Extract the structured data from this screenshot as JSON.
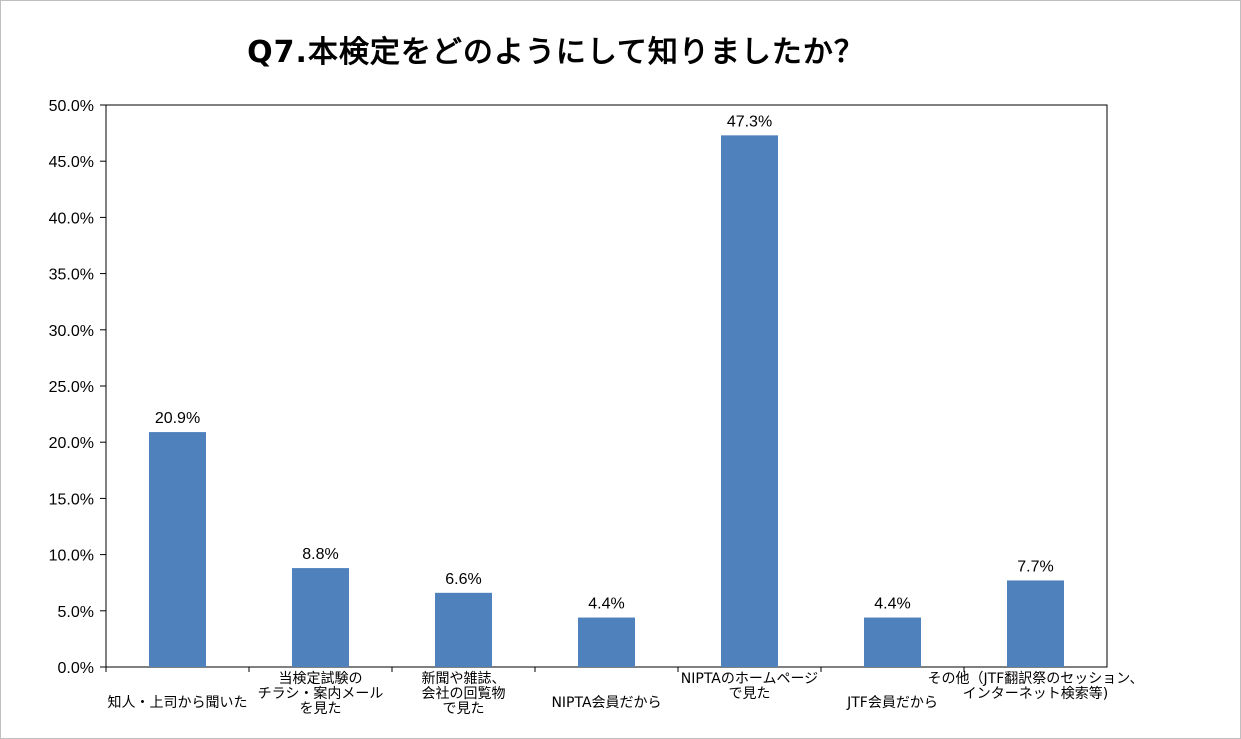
{
  "chart_data": {
    "type": "bar",
    "title": "Q7.本検定をどのようにして知りましたか？",
    "xlabel": "",
    "ylabel": "",
    "ylim": [
      0,
      50
    ],
    "y_ticks": [
      "0.0%",
      "5.0%",
      "10.0%",
      "15.0%",
      "20.0%",
      "25.0%",
      "30.0%",
      "35.0%",
      "40.0%",
      "45.0%",
      "50.0%"
    ],
    "grid": false,
    "legend": "none",
    "bar_color": "#4f81bd",
    "categories": [
      [
        "知人・上司から聞いた"
      ],
      [
        "当検定試験の",
        "チラシ・案内メール",
        "を見た"
      ],
      [
        "新聞や雑誌、",
        "会社の回覧物",
        "で見た"
      ],
      [
        "NIPTA会員だから"
      ],
      [
        "NIPTAのホームページ",
        "で見た"
      ],
      [
        "JTF会員だから"
      ],
      [
        "その他（JTF翻訳祭のセッション、",
        "インターネット検索等)"
      ]
    ],
    "values": [
      20.9,
      8.8,
      6.6,
      4.4,
      47.3,
      4.4,
      7.7
    ],
    "data_labels": [
      "20.9%",
      "8.8%",
      "6.6%",
      "4.4%",
      "47.3%",
      "4.4%",
      "7.7%"
    ]
  }
}
